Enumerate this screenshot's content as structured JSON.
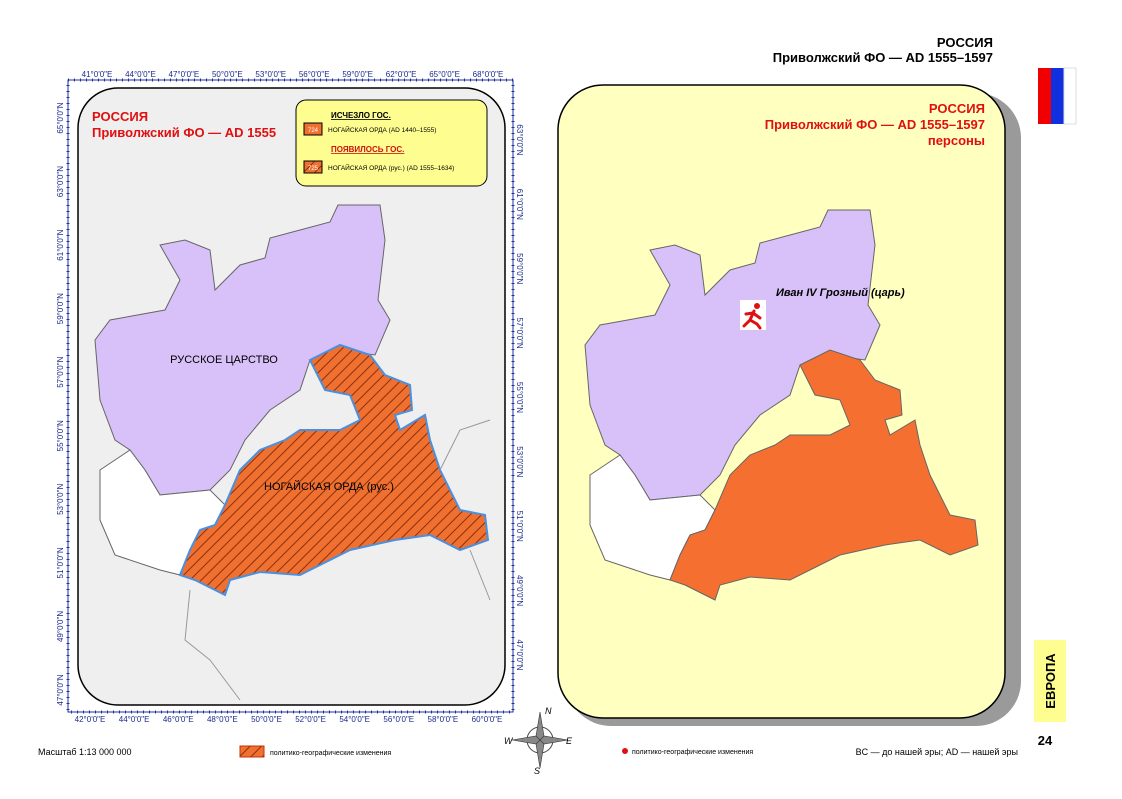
{
  "header": {
    "country": "РОССИЯ",
    "subtitle": "Приволжский ФО — AD 1555–1597"
  },
  "left_map": {
    "title": "РОССИЯ",
    "subtitle": "Приволжский ФО —  AD 1555",
    "legend": {
      "removed_heading": "ИСЧЕЗЛО ГОС.",
      "removed_code": "724",
      "removed_item": "НОГАЙСКАЯ ОРДА (AD 1440–1555)",
      "added_heading": "ПОЯВИЛОСЬ ГОС.",
      "added_code": "725",
      "added_item": "НОГАЙСКАЯ ОРДА (рус.)  (AD 1555–1634)"
    },
    "regions": [
      "РУССКОЕ ЦАРСТВО",
      "НОГАЙСКАЯ ОРДА (рус.)"
    ],
    "top_axis": [
      "41°0'0\"E",
      "44°0'0\"E",
      "47°0'0\"E",
      "50°0'0\"E",
      "53°0'0\"E",
      "56°0'0\"E",
      "59°0'0\"E",
      "62°0'0\"E",
      "65°0'0\"E",
      "68°0'0\"E"
    ],
    "bottom_axis": [
      "42°0'0\"E",
      "44°0'0\"E",
      "46°0'0\"E",
      "48°0'0\"E",
      "50°0'0\"E",
      "52°0'0\"E",
      "54°0'0\"E",
      "56°0'0\"E",
      "58°0'0\"E",
      "60°0'0\"E"
    ],
    "left_axis": [
      "65°0'0\"N",
      "63°0'0\"N",
      "61°0'0\"N",
      "59°0'0\"N",
      "57°0'0\"N",
      "55°0'0\"N",
      "53°0'0\"N",
      "51°0'0\"N",
      "49°0'0\"N",
      "47°0'0\"N"
    ],
    "right_axis": [
      "63°0'0\"N",
      "61°0'0\"N",
      "59°0'0\"N",
      "57°0'0\"N",
      "55°0'0\"N",
      "53°0'0\"N",
      "51°0'0\"N",
      "49°0'0\"N",
      "47°0'0\"N"
    ]
  },
  "right_map": {
    "title": "РОССИЯ",
    "subtitle": "Приволжский ФО —  AD 1555–1597",
    "caption": "персоны",
    "person": "Иван IV Грозный (царь)"
  },
  "compass": {
    "n": "N",
    "s": "S",
    "w": "W",
    "e": "E"
  },
  "footer": {
    "scale": "Масштаб 1:13 000 000",
    "hatch_legend": "политико-географические изменения",
    "dot_legend": "политико-географические изменения",
    "era_note": "BC — до нашей эры; AD — нашей эры"
  },
  "page_number": "24",
  "section": "ЕВРОПА"
}
